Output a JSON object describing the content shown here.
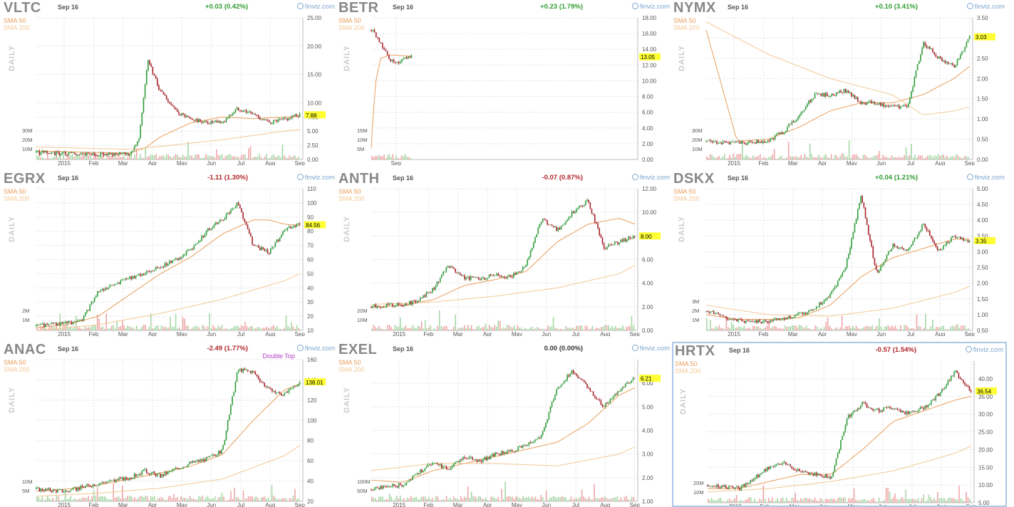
{
  "labels": {
    "sma50": "SMA 50",
    "sma200": "SMA 200",
    "daily": "DAILY",
    "brand": "finviz.com"
  },
  "chart_data": [
    {
      "type": "line",
      "ticker": "VLTC",
      "date": "Sep 16",
      "change": "+0.03 (0.42%)",
      "direction": "up",
      "last_price": "7.88",
      "ylim": [
        0,
        25
      ],
      "yticks": [
        "0.00",
        "2.50",
        "5.00",
        "7.50",
        "10.00",
        "15.00",
        "20.00",
        "25.00"
      ],
      "xticks": [
        "2015",
        "Feb",
        "Mar",
        "Apr",
        "May",
        "Jun",
        "Jul",
        "Aug",
        "Sep"
      ],
      "vol_ticks": [
        "30M",
        "20M",
        "10M"
      ],
      "series": [
        {
          "role": "price",
          "x": [
            0,
            1,
            2,
            3,
            3.3,
            3.6,
            4,
            4.5,
            5,
            5.5,
            6,
            6.5,
            7,
            7.5,
            8,
            8.5
          ],
          "values": [
            1.2,
            1.0,
            0.9,
            0.9,
            3.5,
            17.5,
            12,
            8.5,
            7,
            6.5,
            6.5,
            9,
            8,
            6.5,
            7,
            7.9
          ]
        },
        {
          "role": "sma50",
          "x": [
            0,
            3,
            3.5,
            4,
            5,
            6,
            7,
            8,
            8.5
          ],
          "values": [
            1.5,
            1.1,
            2,
            4,
            6.5,
            7.5,
            7.2,
            7.5,
            7.6
          ]
        },
        {
          "role": "sma200",
          "x": [
            0,
            3,
            4,
            6,
            8,
            8.5
          ],
          "values": [
            2.2,
            1.8,
            2.3,
            3.5,
            5,
            5.3
          ]
        }
      ],
      "annotations": []
    },
    {
      "type": "line",
      "ticker": "BETR",
      "date": "Sep 16",
      "change": "+0.23 (1.79%)",
      "direction": "up",
      "last_price": "13.05",
      "ylim": [
        0,
        18
      ],
      "yticks": [
        "0.00",
        "2.00",
        "4.00",
        "6.00",
        "8.00",
        "10.00",
        "12.00",
        "14.00",
        "16.00",
        "18.00"
      ],
      "xticks": [
        "Sep"
      ],
      "vol_ticks": [
        "15M",
        "10M",
        "5M"
      ],
      "series": [
        {
          "role": "price",
          "x": [
            0,
            0.2,
            0.4,
            0.6,
            0.8,
            1.0,
            1.3
          ],
          "values": [
            16.5,
            15.5,
            14,
            12.8,
            12.3,
            12.6,
            13.0
          ]
        },
        {
          "role": "sma50",
          "x": [
            0,
            0.05,
            0.15,
            0.3,
            0.6,
            1.3
          ],
          "values": [
            1.5,
            5,
            10,
            12.8,
            13.3,
            13.1
          ]
        }
      ],
      "annotations": []
    },
    {
      "type": "line",
      "ticker": "NYMX",
      "date": "Sep 16",
      "change": "+0.10 (3.41%)",
      "direction": "up",
      "last_price": "3.03",
      "ylim": [
        0,
        3.5
      ],
      "yticks": [
        "0.00",
        "0.50",
        "1.00",
        "1.50",
        "2.00",
        "2.50",
        "3.00",
        "3.50"
      ],
      "xticks": [
        "2015",
        "Feb",
        "Mar",
        "Apr",
        "May",
        "Jun",
        "Jul",
        "Aug",
        "Sep"
      ],
      "vol_ticks": [
        "30M",
        "20M",
        "10M"
      ],
      "series": [
        {
          "role": "price",
          "x": [
            0,
            1,
            2,
            2.5,
            3,
            3.5,
            4,
            4.5,
            5,
            5.5,
            6,
            6.5,
            7,
            7.5,
            8,
            8.5
          ],
          "values": [
            0.45,
            0.4,
            0.45,
            0.7,
            1.1,
            1.6,
            1.6,
            1.7,
            1.4,
            1.4,
            1.3,
            1.3,
            2.9,
            2.5,
            2.3,
            3.0
          ]
        },
        {
          "role": "sma50",
          "x": [
            0,
            1,
            2,
            3,
            4,
            5,
            6,
            7,
            8,
            8.5
          ],
          "values": [
            3.2,
            0.45,
            0.5,
            0.8,
            1.2,
            1.4,
            1.4,
            1.6,
            2.0,
            2.3
          ]
        },
        {
          "role": "sma200",
          "x": [
            0,
            2,
            4,
            6,
            7,
            8,
            8.5
          ],
          "values": [
            3.4,
            2.6,
            2.0,
            1.6,
            1.1,
            1.2,
            1.3
          ]
        }
      ],
      "annotations": []
    },
    {
      "type": "line",
      "ticker": "EGRX",
      "date": "Sep 16",
      "change": "-1.11 (1.30%)",
      "direction": "down",
      "last_price": "84.56",
      "ylim": [
        10,
        110
      ],
      "yticks": [
        "10",
        "20",
        "30",
        "40",
        "50",
        "60",
        "70",
        "80",
        "90",
        "100",
        "110"
      ],
      "xticks": [
        "2015",
        "Feb",
        "Mar",
        "Apr",
        "May",
        "Jun",
        "Jul",
        "Aug",
        "Sep"
      ],
      "vol_ticks": [
        "2M",
        "1M"
      ],
      "series": [
        {
          "role": "price",
          "x": [
            0,
            1,
            1.5,
            2,
            2.5,
            3,
            3.5,
            4,
            4.5,
            5,
            5.5,
            6,
            6.5,
            7,
            7.5,
            8,
            8.5
          ],
          "values": [
            13,
            15,
            18,
            38,
            42,
            47,
            50,
            55,
            60,
            67,
            80,
            88,
            100,
            70,
            65,
            80,
            86
          ]
        },
        {
          "role": "sma50",
          "x": [
            0,
            1,
            2,
            3,
            4,
            5,
            6,
            7,
            7.5,
            8,
            8.5
          ],
          "values": [
            12,
            14,
            20,
            35,
            50,
            62,
            78,
            88,
            88,
            85,
            84
          ]
        },
        {
          "role": "sma200",
          "x": [
            0,
            2,
            4,
            6,
            8,
            8.5
          ],
          "values": [
            10,
            14,
            22,
            32,
            45,
            50
          ]
        }
      ],
      "annotations": []
    },
    {
      "type": "line",
      "ticker": "ANTH",
      "date": "Sep 16",
      "change": "-0.07 (0.87%)",
      "direction": "down",
      "last_price": "8.00",
      "ylim": [
        0,
        12
      ],
      "yticks": [
        "0.00",
        "2.00",
        "4.00",
        "6.00",
        "8.00",
        "10.00",
        "12.00"
      ],
      "xticks": [
        "2015",
        "Feb",
        "Mar",
        "Apr",
        "May",
        "Jun",
        "Jul",
        "Aug",
        "Sep"
      ],
      "vol_ticks": [
        "20M",
        "10M"
      ],
      "series": [
        {
          "role": "price",
          "x": [
            0,
            1,
            1.5,
            2,
            2.5,
            3,
            3.5,
            4,
            4.5,
            5,
            5.5,
            6,
            6.5,
            7,
            7.5,
            8,
            8.5
          ],
          "values": [
            2,
            2.2,
            2.5,
            3.5,
            5.5,
            4.5,
            4.3,
            4.8,
            4.5,
            5.5,
            9.5,
            8.5,
            10,
            11,
            7,
            7.5,
            8
          ]
        },
        {
          "role": "sma50",
          "x": [
            0,
            1,
            2,
            3,
            4,
            5,
            6,
            7,
            8,
            8.5
          ],
          "values": [
            2,
            2.1,
            2.6,
            3.8,
            4.3,
            5,
            7.5,
            9,
            9.5,
            9
          ]
        },
        {
          "role": "sma200",
          "x": [
            0,
            2,
            4,
            6,
            8,
            8.5
          ],
          "values": [
            2.2,
            2.4,
            2.9,
            3.6,
            4.8,
            5.5
          ]
        }
      ],
      "annotations": []
    },
    {
      "type": "line",
      "ticker": "DSKX",
      "date": "Sep 16",
      "change": "+0.04 (1.21%)",
      "direction": "up",
      "last_price": "3.35",
      "ylim": [
        0.5,
        5.0
      ],
      "yticks": [
        "0.50",
        "1.00",
        "1.50",
        "2.00",
        "2.50",
        "3.00",
        "3.50",
        "4.00",
        "4.50",
        "5.00"
      ],
      "xticks": [
        "2015",
        "Feb",
        "Mar",
        "Apr",
        "May",
        "Jun",
        "Jul",
        "Aug",
        "Sep"
      ],
      "vol_ticks": [
        "3M",
        "2M",
        "1M"
      ],
      "series": [
        {
          "role": "price",
          "x": [
            0,
            1,
            2,
            3,
            3.5,
            4,
            4.5,
            5,
            5.5,
            6,
            6.5,
            7,
            7.5,
            8,
            8.5
          ],
          "values": [
            1.1,
            0.8,
            0.8,
            1.0,
            1.2,
            1.6,
            2.5,
            4.8,
            2.3,
            3.2,
            3.0,
            3.9,
            3.0,
            3.5,
            3.3
          ]
        },
        {
          "role": "sma50",
          "x": [
            0,
            1,
            2,
            3,
            4,
            5,
            6,
            7,
            8,
            8.5
          ],
          "values": [
            1.0,
            0.85,
            0.85,
            0.9,
            1.3,
            2.2,
            2.8,
            3.1,
            3.4,
            3.4
          ]
        },
        {
          "role": "sma200",
          "x": [
            0,
            2,
            4,
            6,
            8,
            8.5
          ],
          "values": [
            1.3,
            1.0,
            0.95,
            1.2,
            1.7,
            1.9
          ]
        }
      ],
      "annotations": []
    },
    {
      "type": "line",
      "ticker": "ANAC",
      "date": "Sep 16",
      "change": "-2.49 (1.77%)",
      "direction": "down",
      "last_price": "138.01",
      "ylim": [
        20,
        160
      ],
      "yticks": [
        "20",
        "40",
        "60",
        "80",
        "100",
        "120",
        "140",
        "160"
      ],
      "xticks": [
        "2015",
        "Feb",
        "Mar",
        "Apr",
        "May",
        "Jun",
        "Jul",
        "Aug",
        "Sep"
      ],
      "vol_ticks": [
        "10M",
        "5M"
      ],
      "series": [
        {
          "role": "price",
          "x": [
            0,
            1,
            2,
            3,
            3.5,
            4,
            4.5,
            5,
            5.5,
            6,
            6.5,
            7,
            7.5,
            8,
            8.5
          ],
          "values": [
            32,
            30,
            38,
            43,
            50,
            45,
            52,
            58,
            62,
            70,
            150,
            148,
            130,
            125,
            138
          ]
        },
        {
          "role": "sma50",
          "x": [
            0,
            1,
            2,
            3,
            4,
            5,
            6,
            7,
            8,
            8.5
          ],
          "values": [
            30,
            32,
            36,
            42,
            48,
            55,
            66,
            100,
            130,
            136
          ]
        },
        {
          "role": "sma200",
          "x": [
            0,
            2,
            4,
            6,
            8,
            8.5
          ],
          "values": [
            25,
            28,
            33,
            42,
            65,
            75
          ]
        }
      ],
      "annotations": [
        "Double Top"
      ]
    },
    {
      "type": "line",
      "ticker": "EXEL",
      "date": "Sep 16",
      "change": "0.00 (0.00%)",
      "direction": "flat",
      "last_price": "6.21",
      "ylim": [
        1,
        7
      ],
      "yticks": [
        "1.00",
        "2.00",
        "3.00",
        "4.00",
        "5.00",
        "6.00"
      ],
      "xticks": [
        "2015",
        "Feb",
        "Mar",
        "Apr",
        "May",
        "Jun",
        "Jul",
        "Aug",
        "Sep"
      ],
      "vol_ticks": [
        "100M",
        "50M"
      ],
      "series": [
        {
          "role": "price",
          "x": [
            0,
            1,
            1.5,
            2,
            2.5,
            3,
            3.5,
            4,
            4.5,
            5,
            5.5,
            6,
            6.5,
            7,
            7.5,
            8,
            8.5
          ],
          "values": [
            1.5,
            1.7,
            2.2,
            2.6,
            2.4,
            2.9,
            2.7,
            3.0,
            3.1,
            3.4,
            3.8,
            5.8,
            6.5,
            5.8,
            5.0,
            5.7,
            6.2
          ]
        },
        {
          "role": "sma50",
          "x": [
            0,
            1,
            2,
            3,
            4,
            5,
            6,
            7,
            8,
            8.5
          ],
          "values": [
            1.9,
            1.8,
            2.3,
            2.6,
            2.9,
            3.2,
            3.5,
            4.3,
            5.5,
            5.8
          ]
        },
        {
          "role": "sma200",
          "x": [
            0,
            2,
            4,
            6,
            8,
            8.5
          ],
          "values": [
            2.3,
            2.6,
            2.6,
            2.5,
            3.0,
            3.3
          ]
        }
      ],
      "annotations": []
    },
    {
      "type": "line",
      "ticker": "HRTX",
      "date": "Sep 16",
      "change": "-0.57 (1.54%)",
      "direction": "down",
      "last_price": "36.54",
      "ylim": [
        5,
        45
      ],
      "yticks": [
        "5.00",
        "10.00",
        "15.00",
        "20.00",
        "25.00",
        "30.00",
        "35.00",
        "40.00"
      ],
      "xticks": [
        "2015",
        "Feb",
        "Mar",
        "Apr",
        "May",
        "Jun",
        "Jul",
        "Aug",
        "Sep"
      ],
      "vol_ticks": [
        "20M",
        "10M"
      ],
      "series": [
        {
          "role": "price",
          "x": [
            0,
            1,
            2,
            2.5,
            3,
            3.5,
            4,
            4.5,
            5,
            5.5,
            6,
            6.5,
            7,
            7.5,
            8,
            8.5
          ],
          "values": [
            10,
            9,
            15,
            16,
            14,
            13,
            12,
            29,
            33,
            31,
            32,
            30,
            32,
            36,
            42,
            36.5
          ]
        },
        {
          "role": "sma50",
          "x": [
            0,
            1,
            2,
            3,
            4,
            5,
            6,
            7,
            8,
            8.5
          ],
          "values": [
            9,
            9,
            11,
            13,
            13,
            20,
            28,
            31,
            34,
            35
          ]
        },
        {
          "role": "sma200",
          "x": [
            0,
            2,
            4,
            6,
            8,
            8.5
          ],
          "values": [
            8,
            9,
            11,
            14,
            19,
            21
          ]
        }
      ],
      "annotations": []
    }
  ]
}
